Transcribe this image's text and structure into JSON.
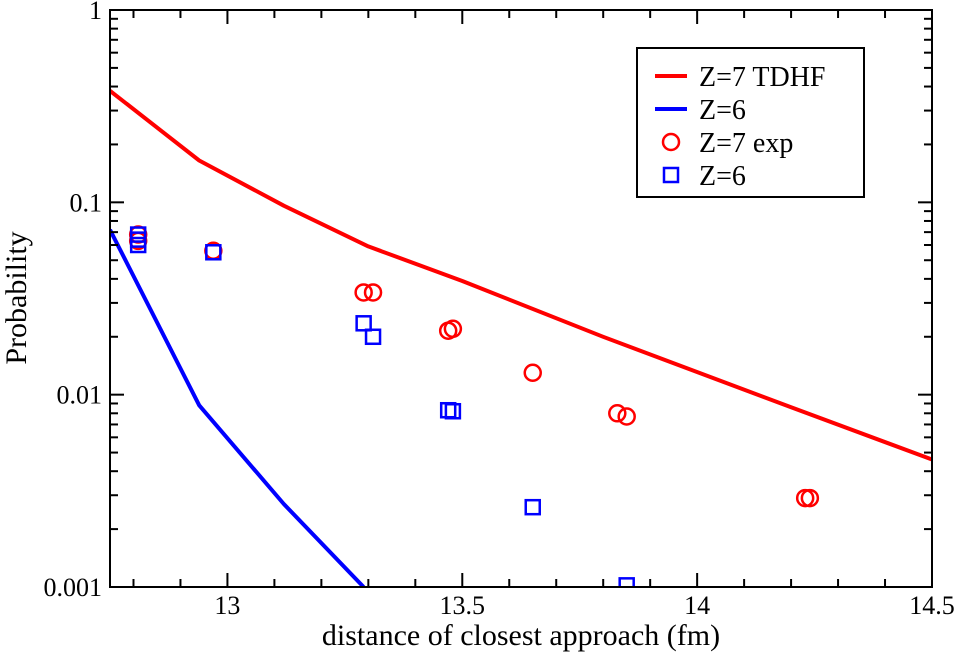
{
  "chart_data": {
    "type": "scatter",
    "xlabel": "distance of closest approach (fm)",
    "ylabel": "Probability",
    "xlim": [
      12.75,
      14.5
    ],
    "ylim": [
      0.001,
      1
    ],
    "yscale": "log",
    "grid": false,
    "legend_position": "top-right",
    "x_ticks": [
      {
        "value": 13,
        "label": "13"
      },
      {
        "value": 13.5,
        "label": "13.5"
      },
      {
        "value": 14,
        "label": "14"
      },
      {
        "value": 14.5,
        "label": "14.5"
      }
    ],
    "y_ticks": [
      {
        "value": 0.001,
        "label": "0.001"
      },
      {
        "value": 0.01,
        "label": "0.01"
      },
      {
        "value": 0.1,
        "label": "0.1"
      },
      {
        "value": 1,
        "label": "1"
      }
    ],
    "series": [
      {
        "name": "Z=7 TDHF",
        "kind": "line",
        "color": "#ff0000",
        "points": [
          [
            12.75,
            0.38
          ],
          [
            12.94,
            0.165
          ],
          [
            13.12,
            0.096
          ],
          [
            13.3,
            0.059
          ],
          [
            13.5,
            0.039
          ],
          [
            13.8,
            0.02
          ],
          [
            14.2,
            0.0086
          ],
          [
            14.5,
            0.0046
          ]
        ]
      },
      {
        "name": "Z=6",
        "kind": "line",
        "color": "#0000ff",
        "points": [
          [
            12.75,
            0.072
          ],
          [
            12.94,
            0.0088
          ],
          [
            13.12,
            0.0027
          ],
          [
            13.29,
            0.001
          ]
        ]
      },
      {
        "name": "Z=7 exp",
        "kind": "marker",
        "marker": "circle",
        "color": "#ff0000",
        "points": [
          [
            12.81,
            0.068
          ],
          [
            12.81,
            0.063
          ],
          [
            12.97,
            0.056
          ],
          [
            13.29,
            0.034
          ],
          [
            13.31,
            0.034
          ],
          [
            13.47,
            0.0215
          ],
          [
            13.48,
            0.022
          ],
          [
            13.65,
            0.013
          ],
          [
            13.83,
            0.008
          ],
          [
            13.85,
            0.0077
          ],
          [
            14.23,
            0.0029
          ],
          [
            14.24,
            0.0029
          ]
        ]
      },
      {
        "name": "Z=6",
        "kind": "marker",
        "marker": "square",
        "color": "#0000ff",
        "points": [
          [
            12.81,
            0.068
          ],
          [
            12.81,
            0.064
          ],
          [
            12.81,
            0.06
          ],
          [
            12.97,
            0.055
          ],
          [
            13.29,
            0.0235
          ],
          [
            13.31,
            0.02
          ],
          [
            13.47,
            0.0083
          ],
          [
            13.48,
            0.0082
          ],
          [
            13.65,
            0.0026
          ],
          [
            13.85,
            0.00102
          ]
        ]
      }
    ]
  }
}
